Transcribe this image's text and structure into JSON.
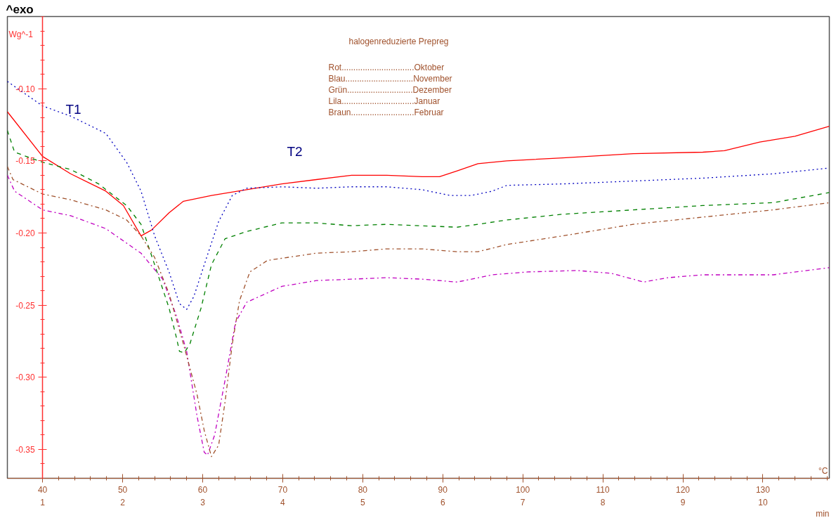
{
  "chart_data": {
    "type": "line",
    "title": "halogenreduzierte Prepreg",
    "ylabel": "Wg^-1",
    "xlabel": "°C",
    "x2label": "min",
    "xlim": [
      35.6,
      138.3
    ],
    "xticks": [
      40,
      50,
      60,
      70,
      80,
      90,
      100,
      110,
      120,
      130
    ],
    "x2lim": [
      0.56,
      10.83
    ],
    "x2ticks": [
      1,
      2,
      3,
      4,
      5,
      6,
      7,
      8,
      9,
      10
    ],
    "ylim": [
      -0.37,
      -0.05
    ],
    "yticks": [
      {
        "value": -0.1,
        "label": "-0.10"
      },
      {
        "value": -0.15,
        "label": "-0.15"
      },
      {
        "value": -0.2,
        "label": "-0.20"
      },
      {
        "value": -0.25,
        "label": "-0.25"
      },
      {
        "value": -0.3,
        "label": "-0.30"
      },
      {
        "value": -0.35,
        "label": "-0.35"
      }
    ],
    "grid": false,
    "annotations": [
      "^exo",
      "T1",
      "T2",
      "Rot...............................Oktober",
      "Blau.............................November",
      "Grün............................Dezember",
      "Lila...............................Januar",
      "Braun...........................Februar"
    ],
    "series": [
      {
        "color": "#ff0000",
        "line_style": "solid",
        "x": [
          35.6,
          40,
          43.5,
          47.9,
          50.1,
          52.3,
          53.6,
          55.8,
          57.6,
          61.1,
          65.5,
          69.9,
          74.2,
          78.6,
          83,
          87.4,
          89.6,
          91.8,
          94.4,
          98,
          105,
          113.8,
          122.5,
          125.2,
          129.6,
          134,
          138.3
        ],
        "values": [
          -0.116,
          -0.147,
          -0.159,
          -0.171,
          -0.181,
          -0.202,
          -0.198,
          -0.186,
          -0.178,
          -0.174,
          -0.17,
          -0.166,
          -0.163,
          -0.16,
          -0.16,
          -0.161,
          -0.161,
          -0.157,
          -0.152,
          -0.15,
          -0.148,
          -0.145,
          -0.144,
          -0.143,
          -0.137,
          -0.133,
          -0.126
        ]
      },
      {
        "color": "#0000c0",
        "line_style": "dotted",
        "x": [
          35.6,
          40,
          43.5,
          47.9,
          50.5,
          52.3,
          54,
          55.8,
          57.1,
          58,
          58.9,
          60.2,
          62,
          63.7,
          65.5,
          69.9,
          74.2,
          78.6,
          83,
          87.4,
          90.9,
          93.6,
          96.2,
          98,
          105,
          113.8,
          122.5,
          131.3,
          138.3
        ],
        "values": [
          -0.095,
          -0.112,
          -0.119,
          -0.131,
          -0.151,
          -0.171,
          -0.202,
          -0.227,
          -0.249,
          -0.253,
          -0.244,
          -0.222,
          -0.192,
          -0.174,
          -0.169,
          -0.168,
          -0.169,
          -0.168,
          -0.168,
          -0.17,
          -0.174,
          -0.174,
          -0.171,
          -0.167,
          -0.166,
          -0.164,
          -0.162,
          -0.159,
          -0.155
        ]
      },
      {
        "color": "#008000",
        "line_style": "dashed",
        "x": [
          35.6,
          36.5,
          40,
          43.5,
          47,
          50.5,
          52.3,
          54,
          55.8,
          56.7,
          57.1,
          57.7,
          58.4,
          59.8,
          61.1,
          62.8,
          65.5,
          69.9,
          74.2,
          78.6,
          83,
          87.4,
          91.8,
          94.4,
          98,
          105,
          113.8,
          122.5,
          131.3,
          138.3
        ],
        "values": [
          -0.129,
          -0.144,
          -0.151,
          -0.156,
          -0.166,
          -0.181,
          -0.194,
          -0.222,
          -0.252,
          -0.272,
          -0.282,
          -0.283,
          -0.277,
          -0.252,
          -0.222,
          -0.204,
          -0.199,
          -0.193,
          -0.193,
          -0.195,
          -0.194,
          -0.195,
          -0.196,
          -0.194,
          -0.191,
          -0.187,
          -0.184,
          -0.181,
          -0.179,
          -0.172
        ]
      },
      {
        "color": "#c000c0",
        "line_style": "dashdot",
        "x": [
          35.6,
          36.5,
          40,
          43.5,
          47.9,
          52.3,
          55,
          56.7,
          58,
          59.3,
          60.2,
          60.6,
          61.5,
          62.8,
          64.1,
          65.5,
          69.9,
          74.2,
          78.6,
          83,
          87.4,
          91.8,
          96.2,
          100.6,
          106.8,
          111.1,
          115.1,
          118.1,
          122.5,
          131.3,
          138.3
        ],
        "values": [
          -0.16,
          -0.171,
          -0.184,
          -0.188,
          -0.197,
          -0.214,
          -0.232,
          -0.257,
          -0.282,
          -0.327,
          -0.352,
          -0.354,
          -0.34,
          -0.302,
          -0.262,
          -0.248,
          -0.237,
          -0.233,
          -0.232,
          -0.231,
          -0.232,
          -0.234,
          -0.229,
          -0.227,
          -0.226,
          -0.228,
          -0.234,
          -0.231,
          -0.229,
          -0.229,
          -0.224
        ]
      },
      {
        "color": "#a0522d",
        "line_style": "dashdot",
        "x": [
          35.6,
          36.3,
          40,
          43.5,
          47.9,
          50.5,
          52.3,
          54,
          55.8,
          57.6,
          59.3,
          60.2,
          61.1,
          62,
          62.8,
          63.7,
          64.6,
          65.9,
          68.1,
          74.2,
          78.6,
          83,
          87.4,
          91.8,
          94.4,
          98,
          105,
          113.8,
          122.5,
          131.3,
          138.3
        ],
        "values": [
          -0.154,
          -0.163,
          -0.173,
          -0.177,
          -0.184,
          -0.191,
          -0.202,
          -0.217,
          -0.242,
          -0.277,
          -0.312,
          -0.337,
          -0.355,
          -0.347,
          -0.317,
          -0.277,
          -0.247,
          -0.227,
          -0.219,
          -0.214,
          -0.213,
          -0.211,
          -0.211,
          -0.213,
          -0.213,
          -0.208,
          -0.202,
          -0.194,
          -0.189,
          -0.184,
          -0.179
        ]
      }
    ]
  }
}
